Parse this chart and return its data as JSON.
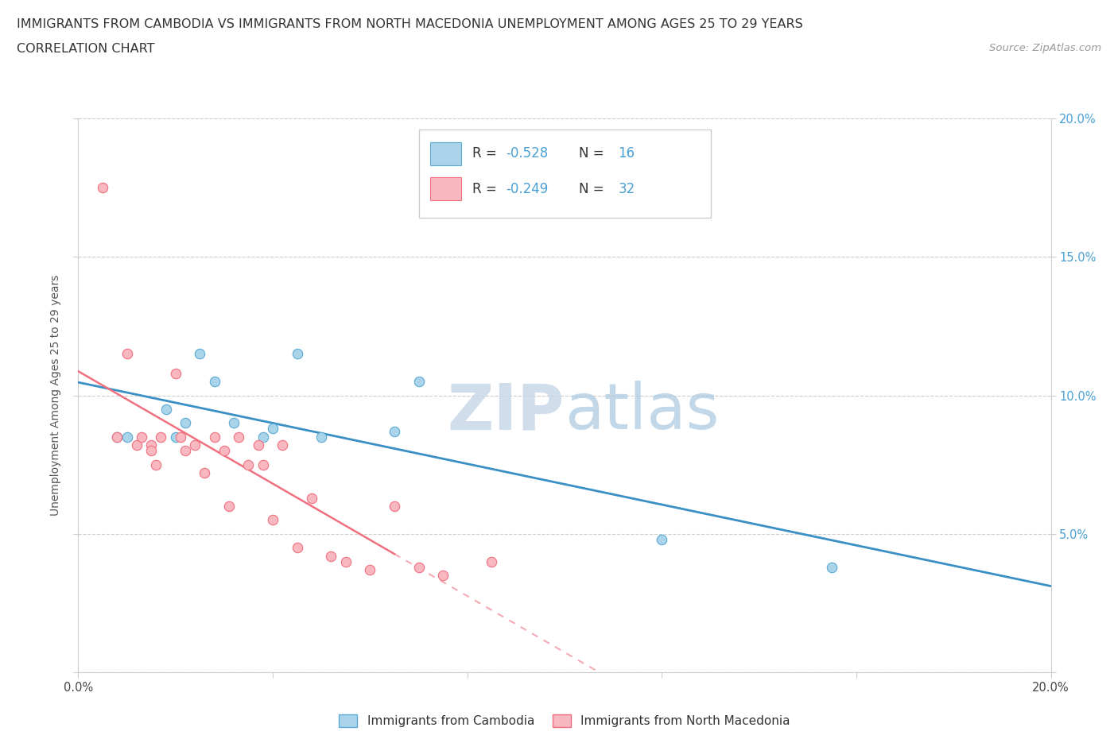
{
  "title_line1": "IMMIGRANTS FROM CAMBODIA VS IMMIGRANTS FROM NORTH MACEDONIA UNEMPLOYMENT AMONG AGES 25 TO 29 YEARS",
  "title_line2": "CORRELATION CHART",
  "source_text": "Source: ZipAtlas.com",
  "ylabel": "Unemployment Among Ages 25 to 29 years",
  "xlim": [
    0.0,
    0.2
  ],
  "ylim": [
    0.0,
    0.2
  ],
  "cambodia_x": [
    0.008,
    0.01,
    0.018,
    0.02,
    0.022,
    0.025,
    0.028,
    0.032,
    0.038,
    0.04,
    0.045,
    0.05,
    0.065,
    0.07,
    0.12,
    0.155
  ],
  "cambodia_y": [
    0.085,
    0.085,
    0.095,
    0.085,
    0.09,
    0.115,
    0.105,
    0.09,
    0.085,
    0.088,
    0.115,
    0.085,
    0.087,
    0.105,
    0.048,
    0.038
  ],
  "macedonia_x": [
    0.005,
    0.008,
    0.01,
    0.012,
    0.013,
    0.015,
    0.015,
    0.016,
    0.017,
    0.02,
    0.021,
    0.022,
    0.024,
    0.026,
    0.028,
    0.03,
    0.031,
    0.033,
    0.035,
    0.037,
    0.038,
    0.04,
    0.042,
    0.045,
    0.048,
    0.052,
    0.055,
    0.06,
    0.065,
    0.07,
    0.075,
    0.085
  ],
  "macedonia_y": [
    0.175,
    0.085,
    0.115,
    0.082,
    0.085,
    0.082,
    0.08,
    0.075,
    0.085,
    0.108,
    0.085,
    0.08,
    0.082,
    0.072,
    0.085,
    0.08,
    0.06,
    0.085,
    0.075,
    0.082,
    0.075,
    0.055,
    0.082,
    0.045,
    0.063,
    0.042,
    0.04,
    0.037,
    0.06,
    0.038,
    0.035,
    0.04
  ],
  "cambodia_color": "#aad4ea",
  "macedonia_color": "#f9b8c0",
  "cambodia_edge_color": "#5baad4",
  "macedonia_edge_color": "#f07080",
  "cambodia_line_color": "#3a8fc4",
  "macedonia_line_color": "#f07080",
  "legend_label_cambodia": "Immigrants from Cambodia",
  "legend_label_macedonia": "Immigrants from North Macedonia",
  "title_fontsize": 11.5,
  "subtitle_fontsize": 11.5,
  "axis_label_fontsize": 10,
  "tick_fontsize": 10.5,
  "legend_fontsize": 11,
  "source_fontsize": 9.5,
  "background_color": "#ffffff",
  "grid_color": "#cccccc"
}
